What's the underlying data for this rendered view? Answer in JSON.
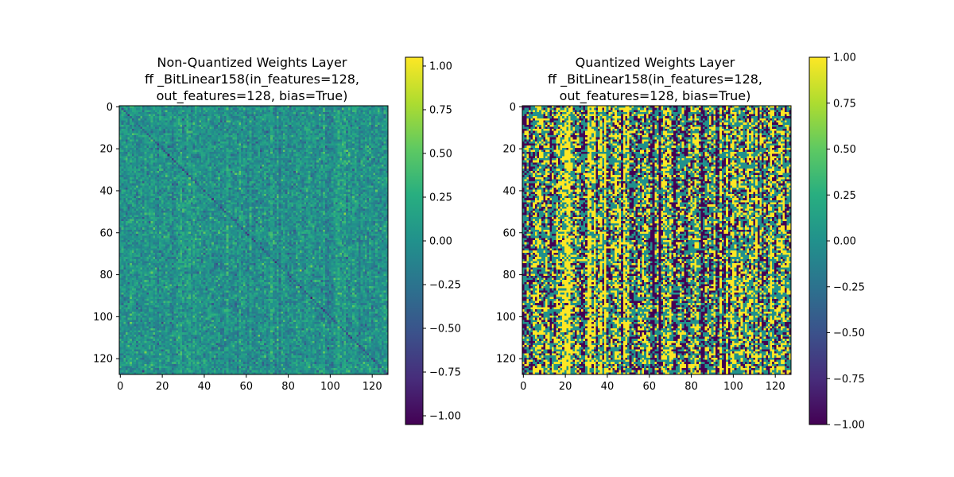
{
  "chart_data": [
    {
      "type": "heatmap",
      "title_lines": [
        "Non-Quantized Weights Layer",
        "ff _BitLinear158(in_features=128,",
        "out_features=128, bias=True)"
      ],
      "rows": 128,
      "cols": 128,
      "value_range": [
        -1.05,
        1.05
      ],
      "colormap": "viridis",
      "distribution": "continuous values concentrated near 0, with a faint negative diagonal",
      "x_ticks": [
        0,
        20,
        40,
        60,
        80,
        100,
        120
      ],
      "x_tick_labels": [
        "0",
        "20",
        "40",
        "60",
        "80",
        "100",
        "120"
      ],
      "y_ticks": [
        0,
        20,
        40,
        60,
        80,
        100,
        120
      ],
      "y_tick_labels": [
        "0",
        "20",
        "40",
        "60",
        "80",
        "100",
        "120"
      ],
      "colorbar": {
        "min": -1.05,
        "max": 1.05,
        "ticks": [
          1.0,
          0.75,
          0.5,
          0.25,
          0.0,
          -0.25,
          -0.5,
          -0.75,
          -1.0
        ],
        "tick_labels": [
          "1.00",
          "0.75",
          "0.50",
          "0.25",
          "0.00",
          "−0.25",
          "−0.50",
          "−0.75",
          "−1.00"
        ]
      }
    },
    {
      "type": "heatmap",
      "title_lines": [
        "Quantized Weights Layer",
        "ff _BitLinear158(in_features=128,",
        "out_features=128, bias=True)"
      ],
      "rows": 128,
      "cols": 128,
      "value_range": [
        -1.0,
        1.0
      ],
      "colormap": "viridis",
      "distribution": "ternary values {-1, 0, 1}",
      "x_ticks": [
        0,
        20,
        40,
        60,
        80,
        100,
        120
      ],
      "x_tick_labels": [
        "0",
        "20",
        "40",
        "60",
        "80",
        "100",
        "120"
      ],
      "y_ticks": [
        0,
        20,
        40,
        60,
        80,
        100,
        120
      ],
      "y_tick_labels": [
        "0",
        "20",
        "40",
        "60",
        "80",
        "100",
        "120"
      ],
      "colorbar": {
        "min": -1.0,
        "max": 1.0,
        "ticks": [
          1.0,
          0.75,
          0.5,
          0.25,
          0.0,
          -0.25,
          -0.5,
          -0.75,
          -1.0
        ],
        "tick_labels": [
          "1.00",
          "0.75",
          "0.50",
          "0.25",
          "0.00",
          "−0.25",
          "−0.50",
          "−0.75",
          "−1.00"
        ]
      }
    }
  ]
}
